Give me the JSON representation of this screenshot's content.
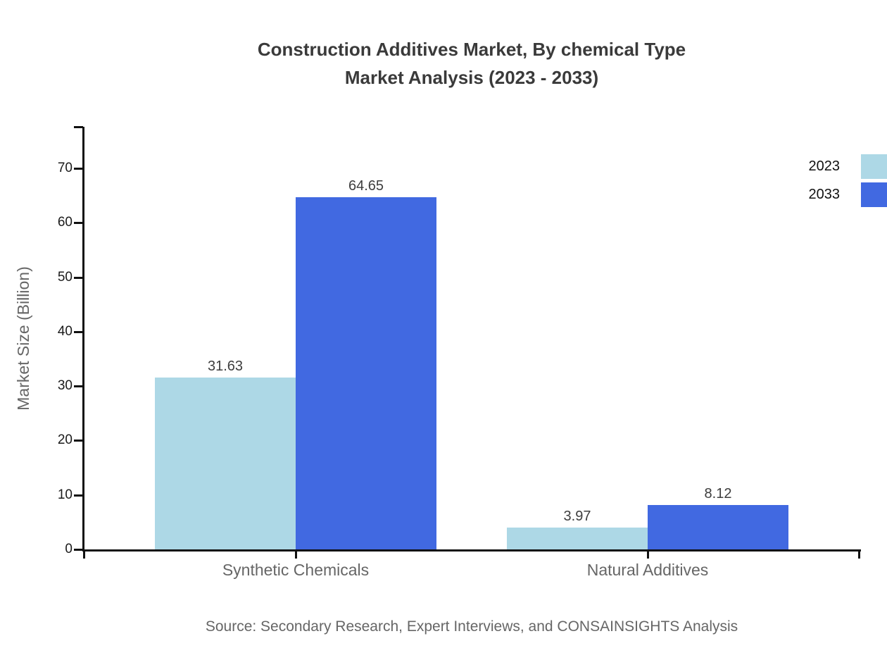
{
  "title": {
    "line1": "Construction Additives Market, By chemical Type",
    "line2": "Market Analysis (2023 - 2033)"
  },
  "source": "Source: Secondary Research, Expert Interviews, and CONSAINSIGHTS Analysis",
  "chart_data": {
    "type": "bar",
    "title": "Construction Additives Market, By chemical Type Market Analysis (2023 - 2033)",
    "categories": [
      "Synthetic Chemicals",
      "Natural Additives"
    ],
    "series": [
      {
        "name": "2023",
        "color": "#ADD8E6",
        "values": [
          31.63,
          3.97
        ]
      },
      {
        "name": "2033",
        "color": "#4169E1",
        "values": [
          64.65,
          8.12
        ]
      }
    ],
    "value_labels": [
      "31.63",
      "64.65",
      "3.97",
      "8.12"
    ],
    "xlabel": "",
    "ylabel": "Market Size (Billion)",
    "ylim": [
      0,
      77.6
    ],
    "yticks": [
      0,
      10,
      20,
      30,
      40,
      50,
      60,
      70
    ],
    "grid": false,
    "legend_position": "top-right",
    "legend_entries": [
      "2023",
      "2033"
    ]
  }
}
